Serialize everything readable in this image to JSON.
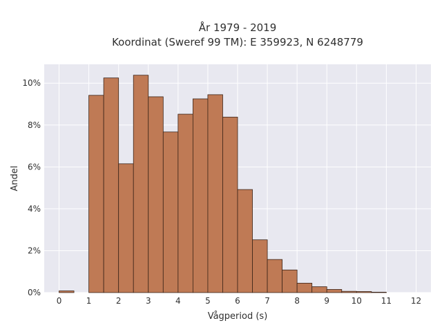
{
  "chart_data": {
    "type": "bar",
    "title_line1": "År 1979 - 2019",
    "title_line2": "Koordinat (Sweref 99 TM): E 359923, N 6248779",
    "xlabel": "Vågperiod (s)",
    "ylabel": "Andel",
    "x_ticks": [
      "0",
      "1",
      "2",
      "3",
      "4",
      "5",
      "6",
      "7",
      "8",
      "9",
      "10",
      "11",
      "12"
    ],
    "y_ticks": [
      "0%",
      "2%",
      "4%",
      "6%",
      "8%",
      "10%"
    ],
    "xlim": [
      -0.5,
      12.5
    ],
    "ylim": [
      0,
      10.9
    ],
    "bin_width": 0.5,
    "bins": [
      {
        "start": 0.0,
        "value": 0.08
      },
      {
        "start": 1.0,
        "value": 9.42
      },
      {
        "start": 1.5,
        "value": 10.25
      },
      {
        "start": 2.0,
        "value": 6.15
      },
      {
        "start": 2.5,
        "value": 10.38
      },
      {
        "start": 3.0,
        "value": 9.35
      },
      {
        "start": 3.5,
        "value": 7.67
      },
      {
        "start": 4.0,
        "value": 8.52
      },
      {
        "start": 4.5,
        "value": 9.25
      },
      {
        "start": 5.0,
        "value": 9.45
      },
      {
        "start": 5.5,
        "value": 8.38
      },
      {
        "start": 6.0,
        "value": 4.92
      },
      {
        "start": 6.5,
        "value": 2.52
      },
      {
        "start": 7.0,
        "value": 1.58
      },
      {
        "start": 7.5,
        "value": 1.08
      },
      {
        "start": 8.0,
        "value": 0.45
      },
      {
        "start": 8.5,
        "value": 0.28
      },
      {
        "start": 9.0,
        "value": 0.15
      },
      {
        "start": 9.5,
        "value": 0.06
      },
      {
        "start": 10.0,
        "value": 0.05
      },
      {
        "start": 10.5,
        "value": 0.02
      }
    ],
    "grid": true,
    "colors": {
      "bar_fill": "#bf7a55",
      "bar_stroke": "#3b2418",
      "plot_bg": "#e8e8f0",
      "grid": "#ffffff",
      "text": "#2f2f2f"
    }
  }
}
